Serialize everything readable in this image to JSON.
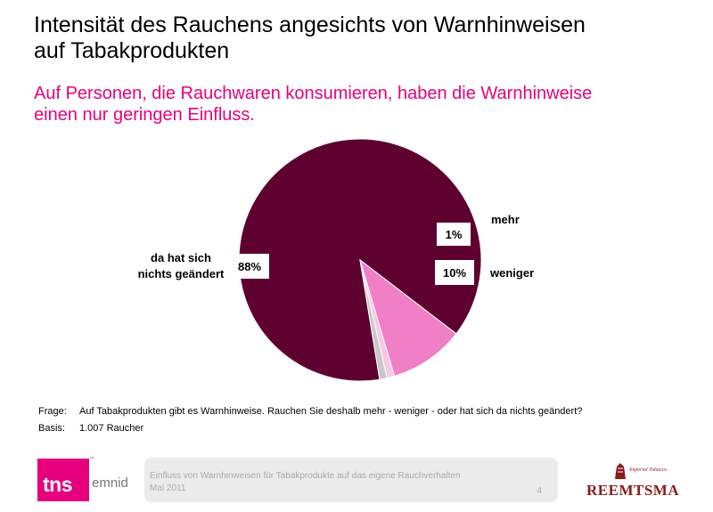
{
  "header": {
    "title_line1": "Intensität des Rauchens angesichts von Warnhinweisen",
    "title_line2": "auf Tabakprodukten",
    "subtitle_line1": "Auf Personen, die Rauchwaren konsumieren, haben die Warnhinweise",
    "subtitle_line2": "einen nur geringen Einfluss."
  },
  "chart_data": {
    "type": "pie",
    "slices": [
      {
        "label_line1": "da hat sich",
        "label_line2": "nichts geändert",
        "value": 88,
        "value_label": "88%",
        "color": "#5e0030"
      },
      {
        "label_line1": "weniger",
        "label_line2": "",
        "value": 10,
        "value_label": "10%",
        "color": "#f07fc6"
      },
      {
        "label_line1": "mehr",
        "label_line2": "",
        "value": 1,
        "value_label": "1%",
        "color": "#f6c8e4"
      },
      {
        "label_line1": "",
        "label_line2": "",
        "value": 1,
        "value_label": "",
        "color": "#c8c8c8"
      }
    ]
  },
  "footnotes": {
    "frage_key": "Frage:",
    "frage_value": "Auf Tabakprodukten gibt es Warnhinweise. Rauchen Sie deshalb mehr - weniger - oder hat sich da nichts geändert?",
    "basis_key": "Basis:",
    "basis_value": "1.007 Raucher"
  },
  "footer": {
    "logo_left": "tns",
    "logo_right": "emnid",
    "logo_tm": "™",
    "line1": "Einfluss von Warnhinweisen für Tabakprodukte auf das eigene Rauchverhalten",
    "line2": "Mai 2011",
    "page": "4",
    "brand_mark": "Imperial Tobacco",
    "brand": "REEMTSMA"
  },
  "colors": {
    "accent": "#e6007e",
    "dark_slice": "#5e0030"
  }
}
